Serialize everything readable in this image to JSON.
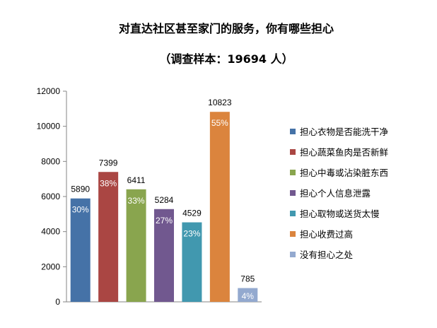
{
  "chart_data": {
    "type": "bar",
    "title": "对直达社区甚至家门的服务，你有哪些担心",
    "subtitle": "（调查样本：19694 人）",
    "categories": [
      "担心衣物是否能洗干净",
      "担心蔬菜鱼肉是否新鲜",
      "担心中毒或沾染脏东西",
      "担心个人信息泄露",
      "担心取物或送货太慢",
      "担心收费过高",
      "没有担心之处"
    ],
    "values": [
      5890,
      7399,
      6411,
      5284,
      4529,
      10823,
      785
    ],
    "percent_labels": [
      "30%",
      "38%",
      "33%",
      "27%",
      "23%",
      "55%",
      "4%"
    ],
    "colors": [
      "#4572A7",
      "#AA4643",
      "#89A54E",
      "#71588F",
      "#4198AF",
      "#DB843D",
      "#93A9CF"
    ],
    "ylim": [
      0,
      12000
    ],
    "yticks": [
      0,
      2000,
      4000,
      6000,
      8000,
      10000,
      12000
    ],
    "legend_position": "right",
    "grid": false
  }
}
